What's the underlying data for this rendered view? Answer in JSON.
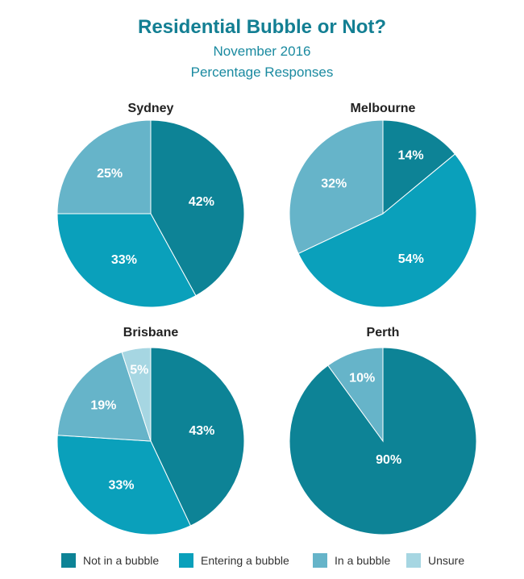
{
  "header": {
    "title": "Residential Bubble or Not?",
    "subtitle": "November 2016",
    "subtitle2": "Percentage Responses"
  },
  "colors": {
    "not_in_bubble": "#0d8396",
    "entering_bubble": "#0aa0bb",
    "in_bubble": "#66b4c9",
    "unsure": "#a6d6e2"
  },
  "legend": [
    {
      "label": "Not in a bubble",
      "color": "#0d8396"
    },
    {
      "label": "Entering a bubble",
      "color": "#0aa0bb"
    },
    {
      "label": "In a bubble",
      "color": "#66b4c9"
    },
    {
      "label": "Unsure",
      "color": "#a6d6e2"
    }
  ],
  "chart_data": [
    {
      "type": "pie",
      "title": "Sydney",
      "categories": [
        "Not in a bubble",
        "Entering a bubble",
        "In a bubble"
      ],
      "values": [
        42,
        33,
        25
      ],
      "labels": [
        "42%",
        "33%",
        "25%"
      ]
    },
    {
      "type": "pie",
      "title": "Melbourne",
      "categories": [
        "Not in a bubble",
        "Entering a bubble",
        "In a bubble"
      ],
      "values": [
        14,
        54,
        32
      ],
      "labels": [
        "14%",
        "54%",
        "32%"
      ]
    },
    {
      "type": "pie",
      "title": "Brisbane",
      "categories": [
        "Not in a bubble",
        "Entering a bubble",
        "In a bubble",
        "Unsure"
      ],
      "values": [
        43,
        33,
        19,
        5
      ],
      "labels": [
        "43%",
        "33%",
        "19%",
        "5%"
      ]
    },
    {
      "type": "pie",
      "title": "Perth",
      "categories": [
        "Not in a bubble",
        "In a bubble"
      ],
      "values": [
        90,
        10
      ],
      "labels": [
        "90%",
        "10%"
      ]
    }
  ]
}
